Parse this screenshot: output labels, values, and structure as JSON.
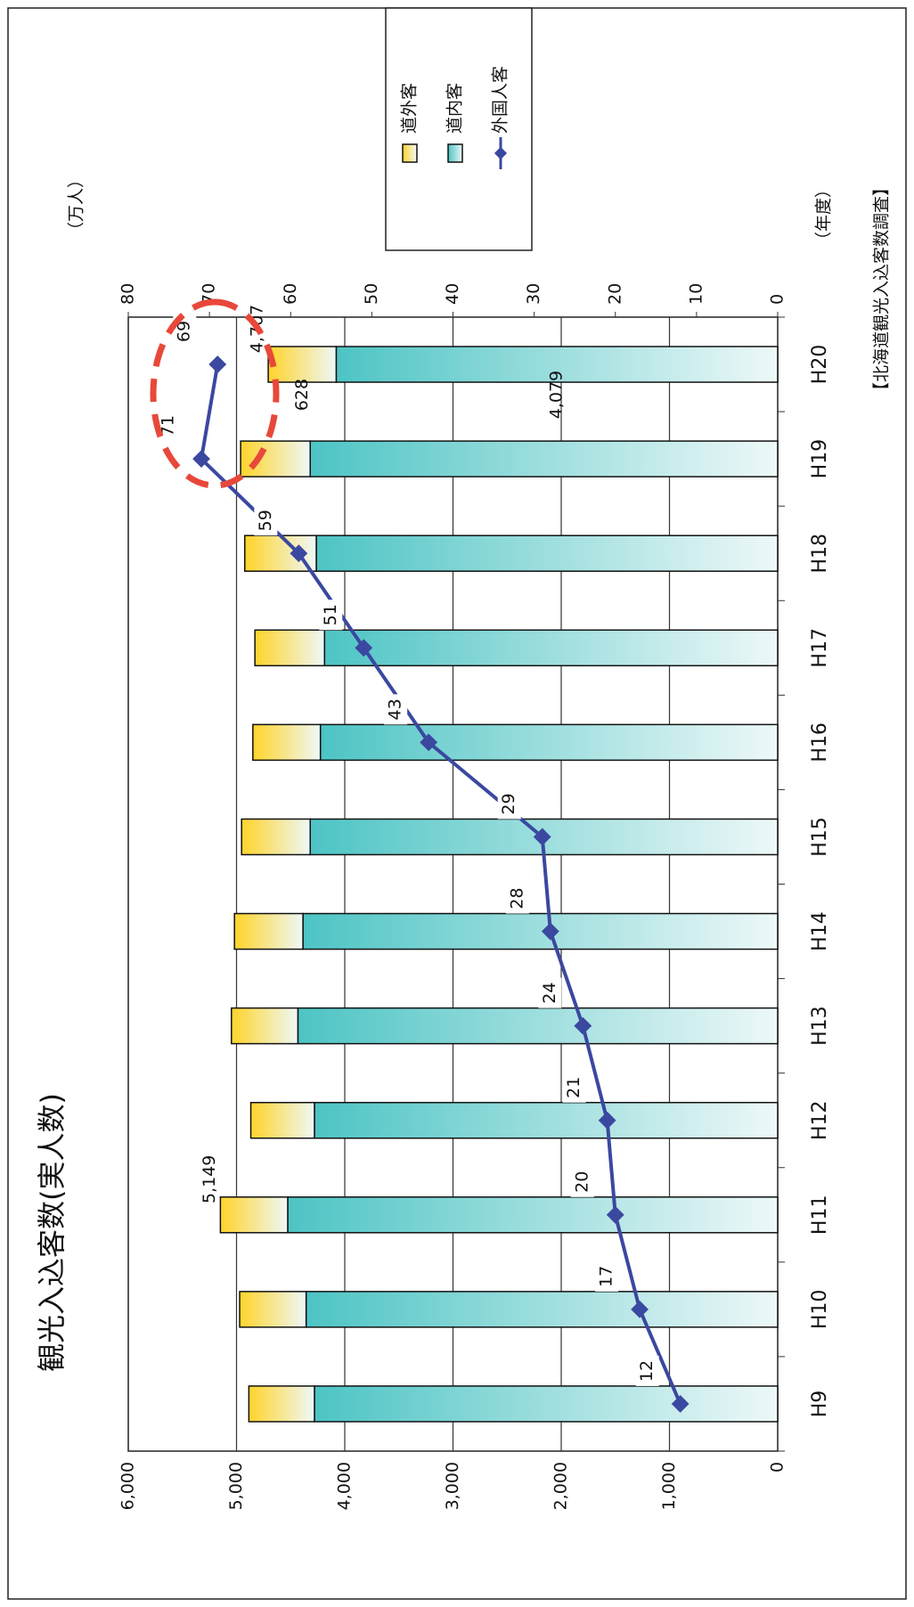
{
  "chart_data": {
    "type": "bar",
    "title": "観光入込客数(実人数)",
    "y2_label": "（万人）",
    "x_label": "（年度）",
    "source": "【北海道観光入込客数調査】",
    "categories": [
      "H9",
      "H10",
      "H11",
      "H12",
      "H13",
      "H14",
      "H15",
      "H16",
      "H17",
      "H18",
      "H19",
      "H20"
    ],
    "series": [
      {
        "name": "道外客",
        "color": "#ffd42a",
        "values": [
          606,
          614,
          622,
          588,
          614,
          633,
          634,
          624,
          643,
          661,
          643,
          628
        ],
        "value_labels": [
          null,
          null,
          null,
          null,
          null,
          null,
          null,
          null,
          null,
          null,
          null,
          "628"
        ]
      },
      {
        "name": "道内客",
        "color": "#4dc4c4",
        "values": [
          4280,
          4357,
          4527,
          4280,
          4433,
          4386,
          4319,
          4225,
          4187,
          4263,
          4319,
          4079
        ],
        "value_labels": [
          null,
          null,
          null,
          null,
          null,
          null,
          null,
          null,
          null,
          null,
          null,
          "4,079"
        ]
      },
      {
        "name": "外国人客",
        "type": "line",
        "axis": "y2",
        "color": "#3a48a0",
        "values": [
          12,
          17,
          20,
          21,
          24,
          28,
          29,
          43,
          51,
          59,
          71,
          69
        ]
      }
    ],
    "total_labels": [
      null,
      null,
      "5,149",
      null,
      null,
      null,
      null,
      null,
      null,
      null,
      null,
      "4,707"
    ],
    "ylim": [
      0,
      6000
    ],
    "yticks": [
      0,
      {
        "value": 1000,
        "label": "1,000"
      },
      {
        "value": 2000,
        "label": "2,000"
      },
      {
        "value": 3000,
        "label": "3,000"
      },
      {
        "value": 4000,
        "label": "4,000"
      },
      {
        "value": 5000,
        "label": "5,000"
      },
      {
        "value": 6000,
        "label": "6,000"
      }
    ],
    "y2lim": [
      0,
      80
    ],
    "y2ticks": [
      0,
      10,
      20,
      30,
      40,
      50,
      60,
      70,
      80
    ],
    "grid": true,
    "legend": "top-right"
  }
}
